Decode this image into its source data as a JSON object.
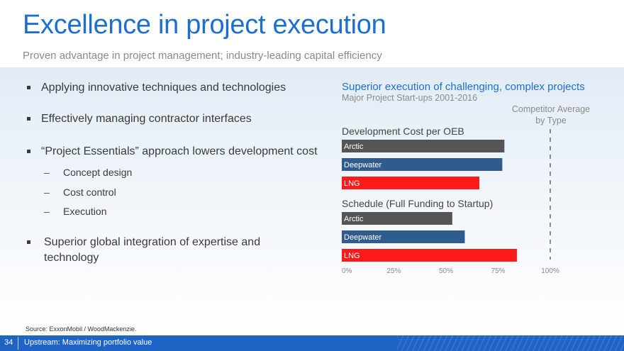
{
  "header": {
    "title": "Excellence in project execution",
    "subtitle": "Proven advantage in project management; industry-leading capital efficiency"
  },
  "bullets": [
    "Applying innovative techniques and technologies",
    "Effectively managing contractor interfaces",
    "“Project Essentials” approach lowers development cost",
    "Superior global integration of expertise and technology"
  ],
  "sub_bullets": [
    "Concept design",
    "Cost control",
    "Execution"
  ],
  "colors": {
    "accent": "#1c6fd1",
    "arctic": "#555555",
    "deepwater": "#2f5b8e",
    "lng": "#ff1a1a",
    "footer": "#1f63c4"
  },
  "chart_data": {
    "type": "bar",
    "orientation": "horizontal",
    "title": "Superior execution of challenging, complex projects",
    "subtitle": "Major Project Start-ups 2001-2016",
    "reference_label": "Competitor Average by Type",
    "reference_value": 100,
    "xlim": [
      0,
      100
    ],
    "x_ticks": [
      "0%",
      "25%",
      "50%",
      "75%",
      "100%"
    ],
    "categories": [
      "Arctic",
      "Deepwater",
      "LNG"
    ],
    "groups": [
      {
        "name": "Development Cost per OEB",
        "values": [
          78,
          77,
          66
        ]
      },
      {
        "name": "Schedule (Full Funding to Startup)",
        "values": [
          53,
          59,
          84
        ]
      }
    ]
  },
  "footer": {
    "source": "Source: ExxonMobil / WoodMackenzie.",
    "page_number": "34",
    "section": "Upstream: Maximizing portfolio value"
  }
}
